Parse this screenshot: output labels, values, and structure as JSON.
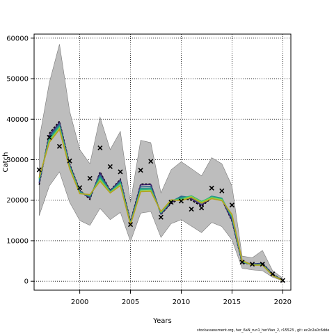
{
  "chart_data": {
    "type": "line",
    "xlabel": "Years",
    "ylabel": "Catch",
    "xlim": [
      1995.5,
      2020.8
    ],
    "ylim": [
      -2200,
      61000
    ],
    "x_ticks": [
      2000,
      2005,
      2010,
      2015,
      2020
    ],
    "y_ticks": [
      0,
      10000,
      20000,
      30000,
      40000,
      50000,
      60000
    ],
    "grid": true,
    "legend": "none",
    "colors": {
      "band": "#bdbdbd",
      "band_edge": "#7a7a7a",
      "observed": "#000000",
      "lines": [
        "#000000",
        "#3b1e6e",
        "#31688e",
        "#21908c",
        "#35b779",
        "#8fd744",
        "#b5a020"
      ]
    },
    "years": [
      1996,
      1997,
      1998,
      1999,
      2000,
      2001,
      2002,
      2003,
      2004,
      2005,
      2006,
      2007,
      2008,
      2009,
      2010,
      2011,
      2012,
      2013,
      2014,
      2015,
      2016,
      2017,
      2018,
      2019,
      2020
    ],
    "upper_band": [
      35000,
      49000,
      58500,
      42000,
      32500,
      29000,
      40500,
      32500,
      37000,
      19500,
      34800,
      34200,
      21800,
      27500,
      29500,
      27800,
      26000,
      30500,
      29000,
      23500,
      6200,
      5800,
      7600,
      2600,
      800
    ],
    "lower_band": [
      16200,
      23500,
      27000,
      19500,
      15000,
      13800,
      18000,
      15200,
      17000,
      9800,
      16800,
      17200,
      10800,
      14200,
      15200,
      13600,
      12000,
      14500,
      13500,
      10200,
      3200,
      2800,
      2600,
      1000,
      100
    ],
    "series": [
      {
        "values": [
          23800,
          36500,
          39500,
          29000,
          22500,
          20200,
          27000,
          22400,
          25200,
          14800,
          24000,
          24000,
          16500,
          19200,
          20500,
          20000,
          18500,
          20500,
          20200,
          14800,
          4500,
          4200,
          4500,
          1800,
          200
        ]
      },
      {
        "values": [
          24200,
          36000,
          39200,
          28800,
          22300,
          20500,
          26700,
          22300,
          25000,
          14600,
          23800,
          23900,
          16600,
          19400,
          20800,
          20300,
          18800,
          20700,
          20300,
          15000,
          4600,
          4300,
          4400,
          1700,
          200
        ]
      },
      {
        "values": [
          24600,
          35600,
          38800,
          28600,
          22200,
          20800,
          26200,
          22200,
          24700,
          14400,
          23300,
          23400,
          16800,
          19600,
          21000,
          20600,
          19200,
          20900,
          20400,
          15500,
          4700,
          4200,
          4300,
          1600,
          200
        ]
      },
      {
        "values": [
          25000,
          35200,
          38400,
          28400,
          22000,
          21000,
          25800,
          22100,
          24400,
          14300,
          22900,
          23000,
          16900,
          19800,
          20700,
          20900,
          19500,
          21000,
          20500,
          15800,
          4800,
          4100,
          4200,
          1500,
          200
        ]
      },
      {
        "values": [
          25300,
          34900,
          38100,
          28200,
          21800,
          21200,
          25400,
          22000,
          24100,
          14200,
          22600,
          22700,
          17000,
          19900,
          20400,
          21100,
          19700,
          20800,
          20300,
          16100,
          4900,
          4000,
          4100,
          1500,
          200
        ]
      },
      {
        "values": [
          25500,
          34600,
          37800,
          28000,
          21700,
          21300,
          25000,
          21900,
          23800,
          14100,
          22300,
          22400,
          17100,
          20000,
          20100,
          20900,
          19500,
          20600,
          20100,
          16300,
          5000,
          4000,
          4000,
          1400,
          200
        ]
      },
      {
        "values": [
          25600,
          34300,
          37500,
          27800,
          21600,
          21400,
          24700,
          21800,
          23600,
          14000,
          22100,
          22200,
          17200,
          20100,
          19900,
          20700,
          19300,
          20400,
          19900,
          16500,
          5100,
          4000,
          4000,
          1400,
          200
        ]
      }
    ],
    "observed": {
      "x": [
        1996,
        1997,
        1998,
        1999,
        2000,
        2001,
        2002,
        2003,
        2004,
        2005,
        2006,
        2007,
        2008,
        2009,
        2010,
        2011,
        2012,
        2013,
        2014,
        2015,
        2016,
        2017,
        2018,
        2019,
        2020
      ],
      "y": [
        27500,
        35500,
        33300,
        29700,
        23100,
        25400,
        32900,
        28300,
        27000,
        14000,
        27400,
        29600,
        15800,
        19500,
        19800,
        17800,
        18100,
        23000,
        22300,
        18800,
        4700,
        4200,
        4200,
        1800,
        200
      ]
    }
  },
  "footer": {
    "note": "stockassessment.org, her_6aN_run1_herVian_2, r15523 , git: ec2c2a0c6dde"
  }
}
